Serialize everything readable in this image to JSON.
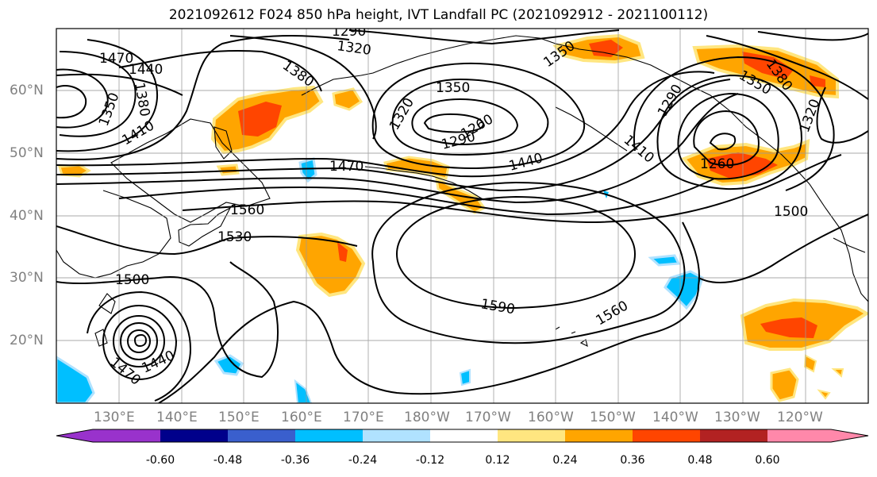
{
  "title": "2021092612 F024 850 hPa height, IVT Landfall PC (2021092912 - 2021100112)",
  "lat_ticks": [
    "60°N",
    "50°N",
    "40°N",
    "30°N",
    "20°N"
  ],
  "lon_ticks": [
    "130°E",
    "140°E",
    "150°E",
    "160°E",
    "170°E",
    "180°W",
    "170°W",
    "160°W",
    "150°W",
    "140°W",
    "130°W",
    "120°W"
  ],
  "contour_labels": [
    "1470",
    "1440",
    "1350",
    "1380",
    "1410",
    "1320",
    "1290",
    "1380",
    "1350",
    "1320",
    "1350",
    "1260",
    "1290",
    "1470",
    "1440",
    "1410",
    "1290",
    "1260",
    "1350",
    "1380",
    "1320",
    "1560",
    "1530",
    "1500",
    "1590",
    "1560",
    "1500",
    "1470",
    "1440"
  ],
  "colorbar": {
    "colors": [
      "#9932cc",
      "#00008b",
      "#3a5fcd",
      "#00bfff",
      "#b0e2ff",
      "#ffffff",
      "#ffe680",
      "#ffa500",
      "#ff4500",
      "#b22222",
      "#ff88aa"
    ],
    "tick_labels": [
      "-0.60",
      "-0.48",
      "-0.36",
      "-0.24",
      "-0.12",
      "0.12",
      "0.24",
      "0.36",
      "0.48",
      "0.60"
    ]
  }
}
